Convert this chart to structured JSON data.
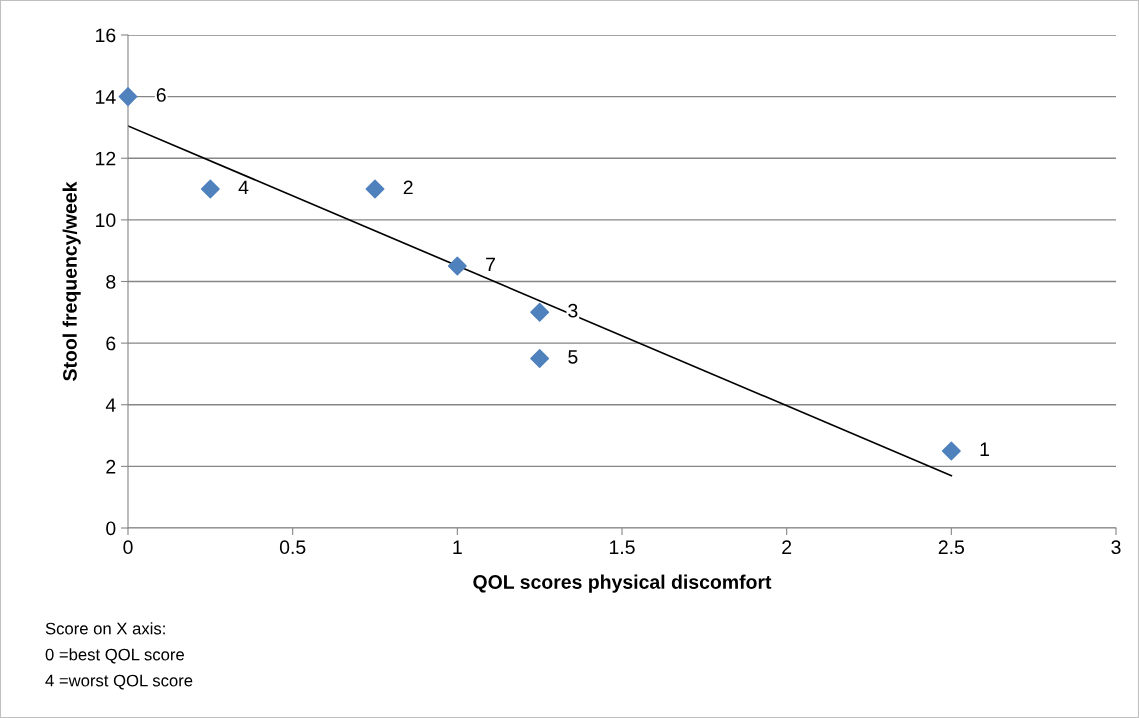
{
  "chart_data": {
    "type": "scatter",
    "xlabel": "QOL scores physical discomfort",
    "ylabel": "Stool frequency/week",
    "x": [
      0,
      0.25,
      0.75,
      1,
      1.25,
      1.25,
      2.5
    ],
    "series": [
      {
        "color": "#4f81bd",
        "values": [
          14,
          11,
          11,
          8.5,
          7,
          5.5,
          2.5
        ],
        "marker": "diamond"
      },
      {
        "type": "line",
        "color": "#000000",
        "x": [
          0,
          2.5
        ],
        "values": [
          13.05,
          1.7
        ],
        "marker": "none",
        "line_style": "solid"
      }
    ],
    "annotations": [
      {
        "text": "6",
        "x": 0,
        "y": 14
      },
      {
        "text": "4",
        "x": 0.25,
        "y": 11
      },
      {
        "text": "2",
        "x": 0.75,
        "y": 11
      },
      {
        "text": "7",
        "x": 1,
        "y": 8.5
      },
      {
        "text": "3",
        "x": 1.25,
        "y": 7
      },
      {
        "text": "5",
        "x": 1.25,
        "y": 5.5
      },
      {
        "text": "1",
        "x": 2.5,
        "y": 2.5
      },
      "Score on X axis:",
      "0 =best QOL score",
      "4 =worst QOL score"
    ],
    "xlim": [
      0,
      3
    ],
    "xticks": [
      0,
      0.5,
      1,
      1.5,
      2,
      2.5,
      3
    ],
    "ylim": [
      0,
      16
    ],
    "yticks": [
      0,
      2,
      4,
      6,
      8,
      10,
      12,
      14,
      16
    ],
    "grid": "y",
    "legend": false
  }
}
